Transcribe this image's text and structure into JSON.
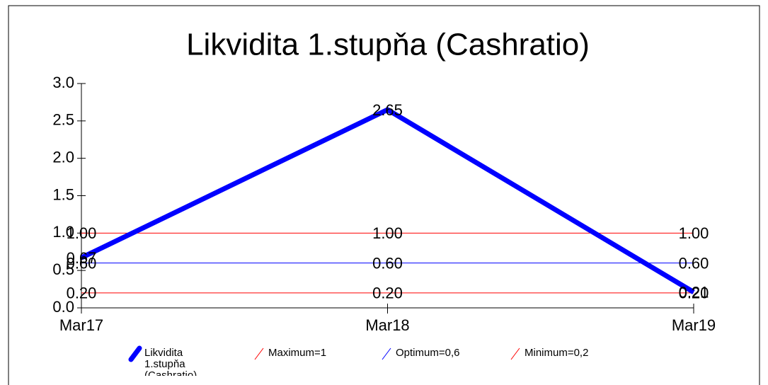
{
  "chart_data": {
    "type": "line",
    "title": "Likvidita 1.stupňa (Cashratio)",
    "categories": [
      "Mar17",
      "Mar18",
      "Mar19"
    ],
    "series": [
      {
        "name": "Likvidita 1.stupňa (Cashratio)",
        "color": "#0000ff",
        "values": [
          0.67,
          2.65,
          0.21
        ],
        "value_labels": [
          "0.67",
          "2.65",
          "0.21"
        ]
      },
      {
        "name": "Maximum=1",
        "color": "#ff0000",
        "values": [
          1,
          1,
          1
        ],
        "value_labels": [
          "1.00",
          "1.00",
          "1.00"
        ]
      },
      {
        "name": "Optimum=0,6",
        "color": "#0000ff",
        "values": [
          0.6,
          0.6,
          0.6
        ],
        "value_labels": [
          "0.60",
          "0.60",
          "0.60"
        ]
      },
      {
        "name": "Minimum=0,2",
        "color": "#ff0000",
        "values": [
          0.2,
          0.2,
          0.2
        ],
        "value_labels": [
          "0.20",
          "0.20",
          "0.20"
        ]
      }
    ],
    "ylim": [
      0,
      3
    ],
    "yticks": [
      {
        "value": 0,
        "label": "0.0"
      },
      0.5,
      {
        "value": 1,
        "label": "1.0"
      },
      1.5,
      {
        "value": 2,
        "label": "2.0"
      },
      2.5,
      {
        "value": 3,
        "label": "3.0"
      }
    ],
    "legend": "bottom"
  }
}
